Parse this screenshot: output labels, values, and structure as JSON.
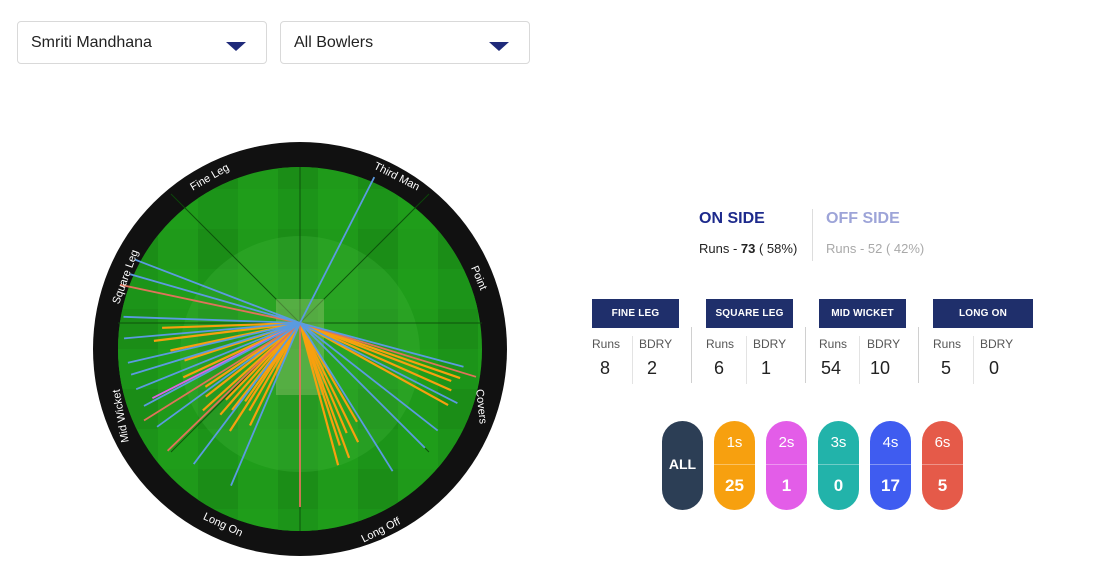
{
  "filters": {
    "batter": "Smriti Mandhana",
    "bowler": "All Bowlers"
  },
  "field_labels": {
    "fine_leg": "Fine Leg",
    "third_man": "Third Man",
    "square_leg": "Square Leg",
    "point": "Point",
    "mid_wicket": "Mid Wicket",
    "covers": "Covers",
    "long_on": "Long On",
    "long_off": "Long Off"
  },
  "sides": {
    "on": {
      "title": "ON SIDE",
      "runs_prefix": "Runs - ",
      "runs": "73",
      "pct": " ( 58%)"
    },
    "off": {
      "title": "OFF SIDE",
      "runs_text": "Runs - 52 ( 42%)"
    }
  },
  "zones": [
    {
      "name": "FINE LEG",
      "runs_label": "Runs",
      "bdry_label": "BDRY",
      "runs": "8",
      "bdry": "2"
    },
    {
      "name": "SQUARE LEG",
      "runs_label": "Runs",
      "bdry_label": "BDRY",
      "runs": "6",
      "bdry": "1"
    },
    {
      "name": "MID WICKET",
      "runs_label": "Runs",
      "bdry_label": "BDRY",
      "runs": "54",
      "bdry": "10"
    },
    {
      "name": "LONG ON",
      "runs_label": "Runs",
      "bdry_label": "BDRY",
      "runs": "5",
      "bdry": "0"
    }
  ],
  "run_filters": {
    "all": "ALL",
    "items": [
      {
        "label": "1s",
        "count": "25",
        "color": "#f7a00f"
      },
      {
        "label": "2s",
        "count": "1",
        "color": "#e35de8"
      },
      {
        "label": "3s",
        "count": "0",
        "color": "#22b3aa"
      },
      {
        "label": "4s",
        "count": "17",
        "color": "#3f5cf0"
      },
      {
        "label": "6s",
        "count": "5",
        "color": "#e55a49"
      }
    ]
  },
  "colors": {
    "ones": "#f7a00f",
    "twos": "#e35de8",
    "fours": "#5b9be0",
    "sixes": "#e0735a",
    "field": "#1f9a1a",
    "rim": "#111111",
    "accent": "#1d2a8c"
  },
  "shots": [
    {
      "type": "ones",
      "angle": 206,
      "len": 0.62
    },
    {
      "type": "ones",
      "angle": 210,
      "len": 0.55
    },
    {
      "type": "ones",
      "angle": 213,
      "len": 0.7
    },
    {
      "type": "ones",
      "angle": 215,
      "len": 0.52
    },
    {
      "type": "ones",
      "angle": 218,
      "len": 0.6
    },
    {
      "type": "ones",
      "angle": 221,
      "len": 0.66
    },
    {
      "type": "ones",
      "angle": 224,
      "len": 0.58
    },
    {
      "type": "ones",
      "angle": 228,
      "len": 0.71
    },
    {
      "type": "ones",
      "angle": 232,
      "len": 0.65
    },
    {
      "type": "ones",
      "angle": 236,
      "len": 0.62
    },
    {
      "type": "ones",
      "angle": 245,
      "len": 0.7
    },
    {
      "type": "ones",
      "angle": 252,
      "len": 0.66
    },
    {
      "type": "ones",
      "angle": 258,
      "len": 0.72
    },
    {
      "type": "ones",
      "angle": 263,
      "len": 0.8
    },
    {
      "type": "ones",
      "angle": 268,
      "len": 0.75
    },
    {
      "type": "ones",
      "angle": 150,
      "len": 0.62
    },
    {
      "type": "ones",
      "angle": 154,
      "len": 0.72
    },
    {
      "type": "ones",
      "angle": 157,
      "len": 0.65
    },
    {
      "type": "ones",
      "angle": 160,
      "len": 0.78
    },
    {
      "type": "ones",
      "angle": 162,
      "len": 0.7
    },
    {
      "type": "ones",
      "angle": 165,
      "len": 0.8
    },
    {
      "type": "ones",
      "angle": 111,
      "len": 0.88
    },
    {
      "type": "ones",
      "angle": 114,
      "len": 0.9
    },
    {
      "type": "ones",
      "angle": 109,
      "len": 0.92
    },
    {
      "type": "ones",
      "angle": 119,
      "len": 0.92
    },
    {
      "type": "twos",
      "angle": 243,
      "len": 0.9
    },
    {
      "type": "fours",
      "angle": 27,
      "len": 0.89
    },
    {
      "type": "fours",
      "angle": 105,
      "len": 0.92
    },
    {
      "type": "fours",
      "angle": 117,
      "len": 0.96
    },
    {
      "type": "fours",
      "angle": 128,
      "len": 0.95
    },
    {
      "type": "fours",
      "angle": 135,
      "len": 0.96
    },
    {
      "type": "fours",
      "angle": 148,
      "len": 0.95
    },
    {
      "type": "fours",
      "angle": 203,
      "len": 0.96
    },
    {
      "type": "fours",
      "angle": 217,
      "len": 0.96
    },
    {
      "type": "fours",
      "angle": 234,
      "len": 0.96
    },
    {
      "type": "fours",
      "angle": 242,
      "len": 0.96
    },
    {
      "type": "fours",
      "angle": 248,
      "len": 0.96
    },
    {
      "type": "fours",
      "angle": 253,
      "len": 0.96
    },
    {
      "type": "fours",
      "angle": 257,
      "len": 0.96
    },
    {
      "type": "fours",
      "angle": 265,
      "len": 0.96
    },
    {
      "type": "fours",
      "angle": 272,
      "len": 0.96
    },
    {
      "type": "fours",
      "angle": 286,
      "len": 0.96
    },
    {
      "type": "fours",
      "angle": 291,
      "len": 0.96
    },
    {
      "type": "sixes",
      "angle": 180,
      "len": 1.0
    },
    {
      "type": "sixes",
      "angle": 226,
      "len": 1.0
    },
    {
      "type": "sixes",
      "angle": 238,
      "len": 1.0
    },
    {
      "type": "sixes",
      "angle": 107,
      "len": 1.0
    },
    {
      "type": "sixes",
      "angle": 282,
      "len": 1.0
    }
  ]
}
